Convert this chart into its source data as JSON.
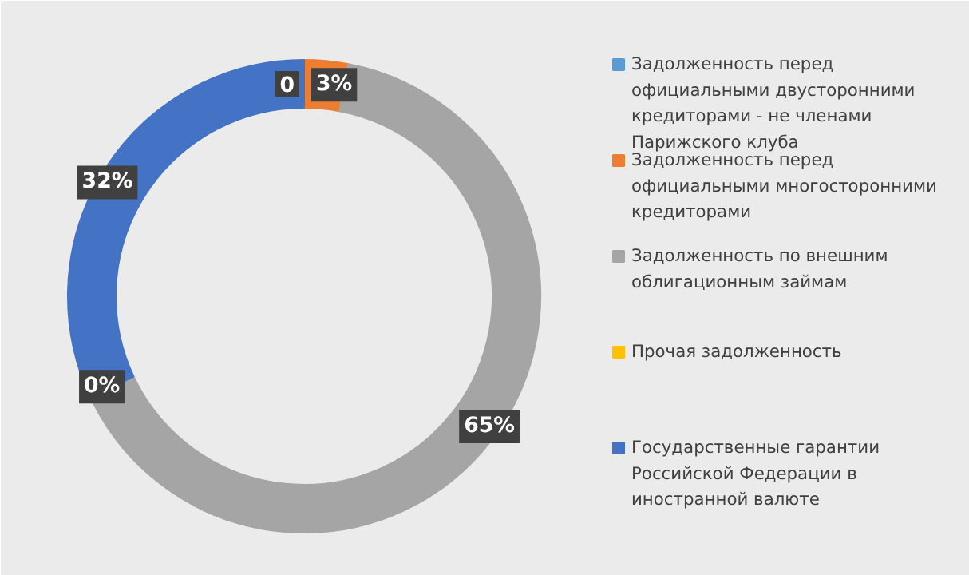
{
  "chart_data": {
    "type": "donut",
    "categories": [
      "Задолженность перед официальными двусторонними кредиторами - не членами Парижского клуба",
      "Задолженность перед официальными многосторонними кредиторами",
      "Задолженность по внешним облигационным займам",
      "Прочая задолженность",
      "Государственные гарантии Российской Федерации в иностранной валюте"
    ],
    "values": [
      0,
      3,
      65,
      0,
      32
    ],
    "value_labels": [
      "0",
      "3%",
      "65%",
      "0%",
      "32%"
    ],
    "colors": [
      "#5b9bd5",
      "#ed7d31",
      "#a5a5a5",
      "#ffc000",
      "#4472c4"
    ],
    "legend": "right"
  }
}
